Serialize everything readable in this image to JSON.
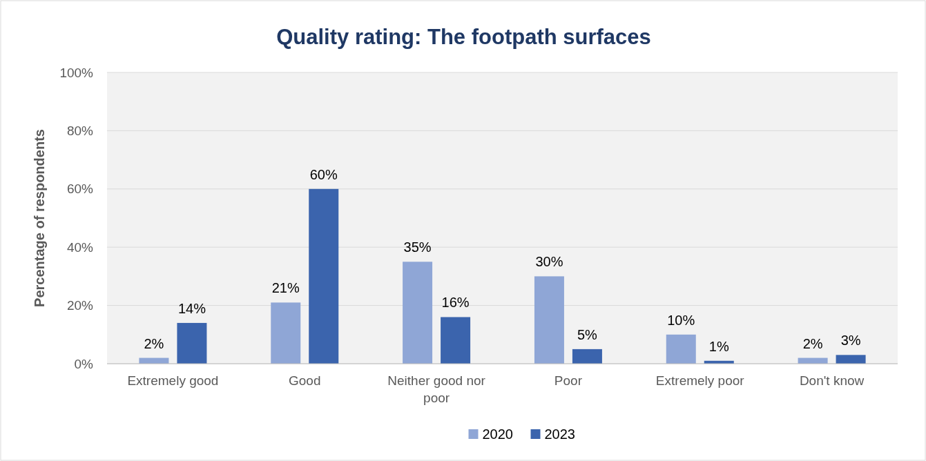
{
  "chart_data": {
    "type": "bar",
    "title": "Quality rating: The footpath surfaces",
    "ylabel": "Percentage of respondents",
    "categories": [
      "Extremely good",
      "Good",
      "Neither good nor poor",
      "Poor",
      "Extremely poor",
      "Don't know"
    ],
    "series": [
      {
        "name": "2020",
        "color": "#8fa6d6",
        "values": [
          2,
          21,
          35,
          30,
          10,
          2
        ],
        "value_labels": [
          "2%",
          "21%",
          "35%",
          "30%",
          "10%",
          "2%"
        ]
      },
      {
        "name": "2023",
        "color": "#3b64ad",
        "values": [
          14,
          60,
          16,
          5,
          1,
          3
        ],
        "value_labels": [
          "14%",
          "60%",
          "16%",
          "5%",
          "1%",
          "3%"
        ]
      }
    ],
    "ylim": [
      0,
      100
    ],
    "yticks": [
      {
        "value": 0,
        "label": "0%"
      },
      {
        "value": 20,
        "label": "20%"
      },
      {
        "value": 40,
        "label": "40%"
      },
      {
        "value": 60,
        "label": "60%"
      },
      {
        "value": 80,
        "label": "80%"
      },
      {
        "value": 100,
        "label": "100%"
      }
    ],
    "grid": "y",
    "legend": "bottom"
  }
}
